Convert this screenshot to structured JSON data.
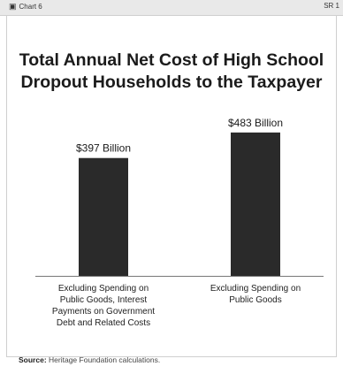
{
  "header": {
    "chart_tag": "Chart 6",
    "series_tag": "SR 1"
  },
  "chart_data": {
    "type": "bar",
    "title_lines": [
      "Total Annual Net Cost of High School",
      "Dropout Households to the Taxpayer"
    ],
    "categories": [
      "Excluding Spending on Public Goods, Interest Payments on Government Debt and Related Costs",
      "Excluding Spending on Public Goods"
    ],
    "category_label_lines": [
      [
        "Excluding Spending on",
        "Public Goods, Interest",
        "Payments on Government",
        "Debt and Related Costs"
      ],
      [
        "Excluding Spending on",
        "Public Goods"
      ]
    ],
    "values": [
      397,
      483
    ],
    "data_labels": [
      "$397 Billion",
      "$483 Billion"
    ],
    "unit": "Billion",
    "ylim": [
      0,
      560
    ],
    "xlabel": "",
    "ylabel": "",
    "grid": false,
    "bar_color": "#2a2a2a"
  },
  "source": {
    "label": "Source:",
    "text": "Heritage Foundation calculations."
  }
}
